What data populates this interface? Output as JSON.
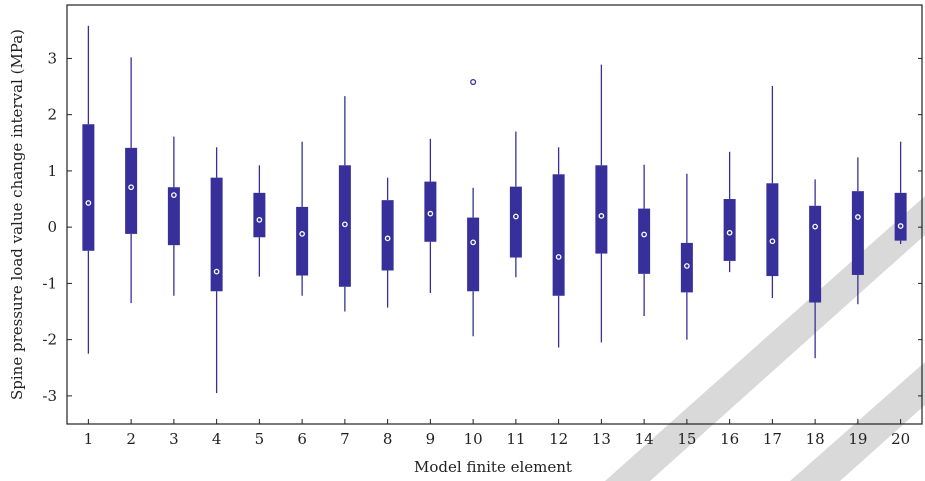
{
  "chart_data": {
    "type": "box",
    "title": "",
    "xlabel": "Model finite element",
    "ylabel": "Spine pressure load value change interval (MPa)",
    "categories": [
      "1",
      "2",
      "3",
      "4",
      "5",
      "6",
      "7",
      "8",
      "9",
      "10",
      "11",
      "12",
      "13",
      "14",
      "15",
      "16",
      "17",
      "18",
      "19",
      "20"
    ],
    "ylim": [
      -3.5,
      3.95
    ],
    "yticks": [
      -3,
      -2,
      -1,
      0,
      1,
      2,
      3
    ],
    "yticklabels": [
      "-3",
      "-2",
      "-1",
      "0",
      "1",
      "2",
      "3"
    ],
    "boxes": [
      {
        "category": "1",
        "whisker_low": -2.25,
        "q1": -0.42,
        "median": 0.43,
        "q3": 1.83,
        "whisker_high": 3.58
      },
      {
        "category": "2",
        "whisker_low": -1.35,
        "q1": -0.12,
        "median": 0.71,
        "q3": 1.41,
        "whisker_high": 3.02
      },
      {
        "category": "3",
        "whisker_low": -1.22,
        "q1": -0.32,
        "median": 0.57,
        "q3": 0.71,
        "whisker_high": 1.61
      },
      {
        "category": "4",
        "whisker_low": -2.95,
        "q1": -1.14,
        "median": -0.79,
        "q3": 0.88,
        "whisker_high": 1.42
      },
      {
        "category": "5",
        "whisker_low": -0.88,
        "q1": -0.18,
        "median": 0.13,
        "q3": 0.61,
        "whisker_high": 1.1
      },
      {
        "category": "6",
        "whisker_low": -1.22,
        "q1": -0.86,
        "median": -0.12,
        "q3": 0.36,
        "whisker_high": 1.52
      },
      {
        "category": "7",
        "whisker_low": -1.5,
        "q1": -1.06,
        "median": 0.05,
        "q3": 1.1,
        "whisker_high": 2.33
      },
      {
        "category": "8",
        "whisker_low": -1.43,
        "q1": -0.77,
        "median": -0.2,
        "q3": 0.48,
        "whisker_high": 0.88
      },
      {
        "category": "9",
        "whisker_low": -1.17,
        "q1": -0.26,
        "median": 0.24,
        "q3": 0.81,
        "whisker_high": 1.57
      },
      {
        "category": "10",
        "whisker_low": -1.94,
        "q1": -1.14,
        "median": -0.27,
        "q3": 0.17,
        "whisker_high": 0.7,
        "outliers": [
          2.58
        ]
      },
      {
        "category": "11",
        "whisker_low": -0.89,
        "q1": -0.54,
        "median": 0.19,
        "q3": 0.72,
        "whisker_high": 1.7
      },
      {
        "category": "12",
        "whisker_low": -2.14,
        "q1": -1.22,
        "median": -0.53,
        "q3": 0.94,
        "whisker_high": 1.42
      },
      {
        "category": "13",
        "whisker_low": -2.05,
        "q1": -0.47,
        "median": 0.2,
        "q3": 1.1,
        "whisker_high": 2.89
      },
      {
        "category": "14",
        "whisker_low": -1.58,
        "q1": -0.83,
        "median": -0.13,
        "q3": 0.33,
        "whisker_high": 1.11
      },
      {
        "category": "15",
        "whisker_low": -2.0,
        "q1": -1.16,
        "median": -0.69,
        "q3": -0.28,
        "whisker_high": 0.95
      },
      {
        "category": "16",
        "whisker_low": -0.8,
        "q1": -0.6,
        "median": -0.1,
        "q3": 0.5,
        "whisker_high": 1.34
      },
      {
        "category": "17",
        "whisker_low": -1.26,
        "q1": -0.87,
        "median": -0.25,
        "q3": 0.78,
        "whisker_high": 2.51
      },
      {
        "category": "18",
        "whisker_low": -2.33,
        "q1": -1.34,
        "median": 0.01,
        "q3": 0.38,
        "whisker_high": 0.85
      },
      {
        "category": "19",
        "whisker_low": -1.37,
        "q1": -0.85,
        "median": 0.18,
        "q3": 0.64,
        "whisker_high": 1.24
      },
      {
        "category": "20",
        "whisker_low": -0.3,
        "q1": -0.24,
        "median": 0.02,
        "q3": 0.61,
        "whisker_high": 1.52
      }
    ],
    "colors": {
      "box": "#38309a",
      "whisker": "#38309a",
      "median_marker": "#ffffff",
      "axis": "#222222",
      "watermark": "#d9d9d9"
    },
    "grid": false,
    "legend": "none"
  }
}
